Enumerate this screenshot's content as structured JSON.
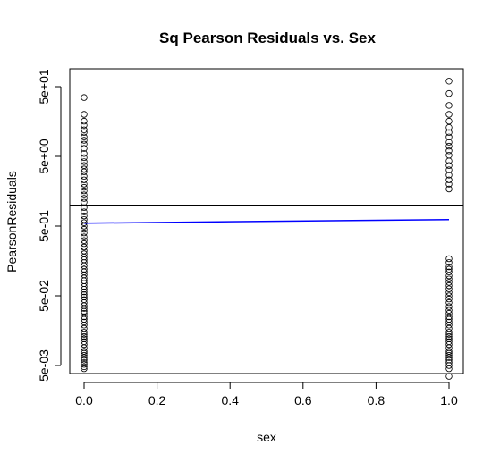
{
  "chart_data": {
    "type": "scatter",
    "title": "Sq Pearson Residuals vs. Sex",
    "xlabel": "sex",
    "ylabel": "PearsonResiduals",
    "xlim": [
      0,
      1
    ],
    "x_ticks": [
      {
        "value": 0.0,
        "label": "0.0"
      },
      {
        "value": 0.2,
        "label": "0.2"
      },
      {
        "value": 0.4,
        "label": "0.4"
      },
      {
        "value": 0.6,
        "label": "0.6"
      },
      {
        "value": 0.8,
        "label": "0.8"
      },
      {
        "value": 1.0,
        "label": "1.0"
      }
    ],
    "y_scale": "log",
    "ylim": [
      0.003,
      90
    ],
    "y_ticks": [
      {
        "value": 50,
        "label": "5e+01"
      },
      {
        "value": 5,
        "label": "5e+00"
      },
      {
        "value": 0.5,
        "label": "5e-01"
      },
      {
        "value": 0.05,
        "label": "5e-02"
      },
      {
        "value": 0.005,
        "label": "5e-03"
      }
    ],
    "series": [
      {
        "x_value": 0,
        "y_values": [
          0.0045,
          0.0048,
          0.0052,
          0.0055,
          0.006,
          0.0065,
          0.007,
          0.0075,
          0.008,
          0.009,
          0.01,
          0.011,
          0.012,
          0.013,
          0.014,
          0.015,
          0.017,
          0.019,
          0.021,
          0.023,
          0.025,
          0.028,
          0.03,
          0.033,
          0.036,
          0.04,
          0.044,
          0.048,
          0.052,
          0.057,
          0.062,
          0.068,
          0.075,
          0.082,
          0.09,
          0.1,
          0.11,
          0.12,
          0.135,
          0.15,
          0.165,
          0.18,
          0.2,
          0.22,
          0.25,
          0.28,
          0.31,
          0.35,
          0.4,
          0.45,
          0.5,
          0.56,
          0.62,
          0.7,
          0.8,
          0.92,
          1.1,
          1.25,
          1.4,
          1.6,
          1.8,
          2.0,
          2.3,
          2.6,
          3.0,
          3.3,
          3.7,
          4.2,
          4.8,
          5.5,
          6.5,
          7.5,
          8.5,
          9.5,
          11,
          12,
          14,
          16,
          20,
          35
        ]
      },
      {
        "x_value": 1,
        "y_values": [
          0.0035,
          0.0045,
          0.005,
          0.0055,
          0.006,
          0.0065,
          0.007,
          0.0075,
          0.008,
          0.009,
          0.01,
          0.011,
          0.012,
          0.013,
          0.014,
          0.015,
          0.017,
          0.019,
          0.021,
          0.023,
          0.025,
          0.028,
          0.031,
          0.035,
          0.04,
          0.045,
          0.05,
          0.056,
          0.063,
          0.07,
          0.078,
          0.087,
          0.097,
          0.11,
          0.12,
          0.13,
          0.15,
          0.17,
          1.7,
          2.0,
          2.3,
          2.7,
          3.2,
          3.7,
          4.3,
          5.2,
          6.0,
          7.0,
          8.0,
          9.5,
          11,
          13,
          16,
          20,
          27,
          40,
          60
        ]
      }
    ],
    "trend_line": {
      "color": "#0000ff",
      "x": [
        0,
        1
      ],
      "y": [
        0.55,
        0.62
      ]
    },
    "reference_line": {
      "y": 1.0,
      "color": "#000000"
    },
    "grid": false,
    "legend": "none"
  }
}
